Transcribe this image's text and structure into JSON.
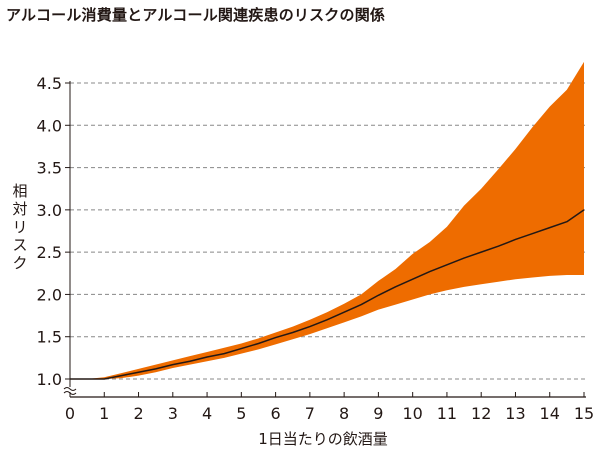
{
  "title": "アルコール消費量とアルコール関連疾患のリスクの関係",
  "chart_data": {
    "type": "line",
    "title": "アルコール消費量とアルコール関連疾患のリスクの関係",
    "xlabel": "1日当たりの飲酒量",
    "ylabel": "相対リスク",
    "xlim": [
      0,
      15
    ],
    "ylim": [
      1.0,
      4.5
    ],
    "y_axis_break": true,
    "grid": "horizontal-dashed",
    "x_ticks": [
      "0",
      "1",
      "2",
      "3",
      "4",
      "5",
      "6",
      "7",
      "8",
      "9",
      "10",
      "11",
      "12",
      "13",
      "14",
      "15"
    ],
    "y_ticks": [
      "1.0",
      "1.5",
      "2.0",
      "2.5",
      "3.0",
      "3.5",
      "4.0",
      "4.5"
    ],
    "x": [
      0,
      0.5,
      1,
      1.5,
      2,
      2.5,
      3,
      3.5,
      4,
      4.5,
      5,
      5.5,
      6,
      6.5,
      7,
      7.5,
      8,
      8.5,
      9,
      9.5,
      10,
      10.5,
      11,
      11.5,
      12,
      12.5,
      13,
      13.5,
      14,
      14.5,
      15
    ],
    "series": [
      {
        "values": [
          1.0,
          1.0,
          1.0,
          1.04,
          1.08,
          1.12,
          1.17,
          1.21,
          1.26,
          1.3,
          1.36,
          1.42,
          1.49,
          1.55,
          1.62,
          1.7,
          1.79,
          1.88,
          1.99,
          2.09,
          2.18,
          2.27,
          2.35,
          2.43,
          2.5,
          2.57,
          2.65,
          2.72,
          2.79,
          2.86,
          3.0
        ]
      }
    ],
    "band": {
      "lower": [
        1.0,
        1.0,
        1.0,
        1.01,
        1.04,
        1.08,
        1.13,
        1.17,
        1.21,
        1.25,
        1.3,
        1.35,
        1.41,
        1.47,
        1.53,
        1.6,
        1.67,
        1.74,
        1.82,
        1.88,
        1.94,
        2.0,
        2.05,
        2.09,
        2.12,
        2.15,
        2.18,
        2.2,
        2.22,
        2.23,
        2.23
      ],
      "upper": [
        1.0,
        1.0,
        1.02,
        1.07,
        1.12,
        1.17,
        1.22,
        1.27,
        1.32,
        1.37,
        1.42,
        1.48,
        1.55,
        1.62,
        1.7,
        1.79,
        1.89,
        2.0,
        2.16,
        2.3,
        2.48,
        2.62,
        2.8,
        3.05,
        3.25,
        3.48,
        3.72,
        3.98,
        4.22,
        4.42,
        4.75
      ]
    },
    "colors": {
      "band": "#EE6C00",
      "line": "#231815",
      "grid": "#888888",
      "axis": "#231815"
    }
  }
}
